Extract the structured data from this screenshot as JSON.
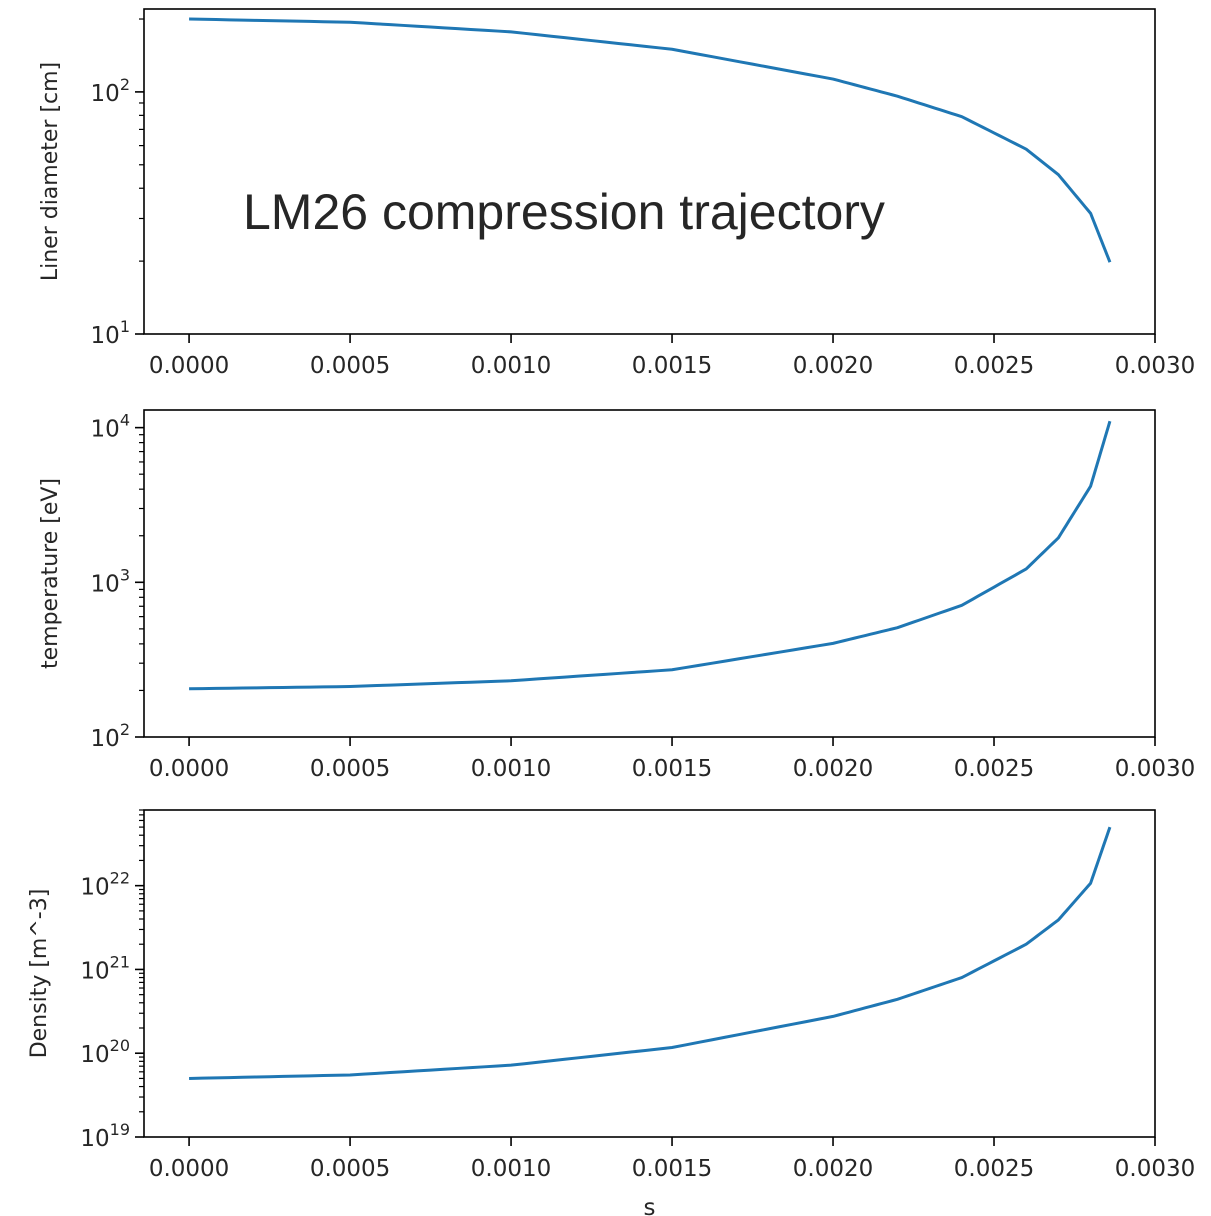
{
  "annotation": "LM26 compression trajectory",
  "chart_data": [
    {
      "type": "line",
      "ylabel": "Liner diameter [cm]",
      "xlabel": "",
      "yscale": "log",
      "xlim": [
        -0.00014,
        0.003
      ],
      "ylim": [
        10,
        220
      ],
      "xticks": [
        "0.0000",
        "0.0005",
        "0.0010",
        "0.0015",
        "0.0020",
        "0.0025",
        "0.0030"
      ],
      "yticks": [
        {
          "base": "10",
          "exp": "1",
          "value": 10
        },
        {
          "base": "10",
          "exp": "2",
          "value": 100
        }
      ],
      "series": [
        {
          "color": "#1f77b4",
          "x": [
            0,
            0.0005,
            0.001,
            0.0015,
            0.002,
            0.0022,
            0.0024,
            0.0026,
            0.0027,
            0.0028,
            0.00286
          ],
          "y": [
            200,
            194,
            177,
            150,
            113,
            96,
            79,
            58,
            45.5,
            31.5,
            19.8
          ]
        }
      ]
    },
    {
      "type": "line",
      "ylabel": "temperature [eV]",
      "xlabel": "",
      "yscale": "log",
      "xlim": [
        -0.00014,
        0.003
      ],
      "ylim": [
        100,
        13000
      ],
      "xticks": [
        "0.0000",
        "0.0005",
        "0.0010",
        "0.0015",
        "0.0020",
        "0.0025",
        "0.0030"
      ],
      "yticks": [
        {
          "base": "10",
          "exp": "2",
          "value": 100
        },
        {
          "base": "10",
          "exp": "3",
          "value": 1000
        },
        {
          "base": "10",
          "exp": "4",
          "value": 10000
        }
      ],
      "series": [
        {
          "color": "#1f77b4",
          "x": [
            0,
            0.0005,
            0.001,
            0.0015,
            0.002,
            0.0022,
            0.0024,
            0.0026,
            0.0027,
            0.0028,
            0.00286
          ],
          "y": [
            205,
            212,
            231,
            272,
            403,
            509,
            710,
            1220,
            1940,
            4180,
            11000
          ]
        }
      ]
    },
    {
      "type": "line",
      "ylabel": "Density [m^-3]",
      "xlabel": "s",
      "yscale": "log",
      "xlim": [
        -0.00014,
        0.003
      ],
      "ylim": [
        1e+19,
        8e+22
      ],
      "xticks": [
        "0.0000",
        "0.0005",
        "0.0010",
        "0.0015",
        "0.0020",
        "0.0025",
        "0.0030"
      ],
      "yticks": [
        {
          "base": "10",
          "exp": "19",
          "value": 1e+19
        },
        {
          "base": "10",
          "exp": "20",
          "value": 1e+20
        },
        {
          "base": "10",
          "exp": "21",
          "value": 1e+21
        },
        {
          "base": "10",
          "exp": "22",
          "value": 1e+22
        }
      ],
      "series": [
        {
          "color": "#1f77b4",
          "x": [
            0,
            0.0005,
            0.001,
            0.0015,
            0.002,
            0.0022,
            0.0024,
            0.0026,
            0.0027,
            0.0028,
            0.00286
          ],
          "y": [
            5e+19,
            5.5e+19,
            7.2e+19,
            1.17e+20,
            2.75e+20,
            4.4e+20,
            8e+20,
            2e+21,
            3.9e+21,
            1.07e+22,
            5e+22
          ]
        }
      ]
    }
  ]
}
